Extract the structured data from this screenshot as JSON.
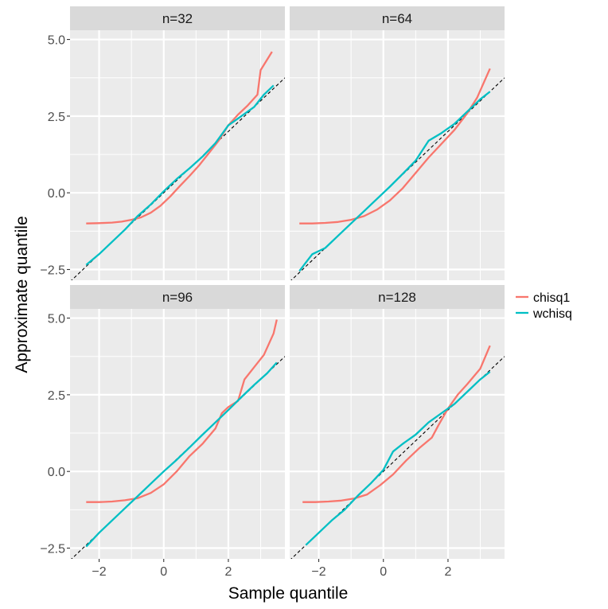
{
  "chart_data": {
    "type": "line",
    "title": "",
    "xlabel": "Sample quantile",
    "ylabel": "Approximate quantile",
    "xlim": [
      -2.9,
      3.75
    ],
    "ylim": [
      -2.85,
      5.3
    ],
    "x_ticks": [
      -2,
      0,
      2
    ],
    "x_tick_labels": [
      "−2",
      "0",
      "2"
    ],
    "y_ticks": [
      -2.5,
      0,
      2.5,
      5
    ],
    "y_tick_labels": [
      "−2.5",
      "0.0",
      "2.5",
      "5.0"
    ],
    "reference_line": {
      "intercept": 0,
      "slope": 1,
      "style": "dashed",
      "color": "#000000"
    },
    "grid": true,
    "legend_position": "right",
    "legend": [
      {
        "name": "chisq1",
        "color": "#F8766D"
      },
      {
        "name": "wchisq",
        "color": "#00BFC4"
      }
    ],
    "panels": [
      {
        "label": "n=32",
        "series": [
          {
            "name": "chisq1",
            "x": [
              -2.4,
              -2.0,
              -1.6,
              -1.3,
              -1.0,
              -0.7,
              -0.4,
              -0.1,
              0.2,
              0.5,
              0.8,
              1.1,
              1.4,
              1.7,
              2.0,
              2.3,
              2.6,
              2.9,
              3.0,
              3.35
            ],
            "y": [
              -1.0,
              -0.99,
              -0.97,
              -0.94,
              -0.88,
              -0.8,
              -0.65,
              -0.42,
              -0.12,
              0.22,
              0.55,
              0.9,
              1.3,
              1.7,
              2.2,
              2.55,
              2.85,
              3.2,
              4.0,
              4.6
            ]
          },
          {
            "name": "wchisq",
            "x": [
              -2.4,
              -2.0,
              -1.6,
              -1.2,
              -0.8,
              -0.4,
              0.0,
              0.4,
              0.8,
              1.2,
              1.6,
              2.0,
              2.4,
              2.8,
              3.1,
              3.4
            ],
            "y": [
              -2.35,
              -2.0,
              -1.6,
              -1.2,
              -0.75,
              -0.38,
              0.05,
              0.45,
              0.8,
              1.18,
              1.62,
              2.2,
              2.5,
              2.8,
              3.2,
              3.5
            ]
          }
        ]
      },
      {
        "label": "n=64",
        "series": [
          {
            "name": "chisq1",
            "x": [
              -2.6,
              -2.2,
              -1.8,
              -1.4,
              -1.0,
              -0.6,
              -0.2,
              0.2,
              0.6,
              1.0,
              1.4,
              1.8,
              2.2,
              2.6,
              2.9,
              3.3
            ],
            "y": [
              -1.0,
              -1.0,
              -0.98,
              -0.95,
              -0.88,
              -0.76,
              -0.55,
              -0.25,
              0.15,
              0.65,
              1.15,
              1.6,
              2.05,
              2.6,
              3.1,
              4.05
            ]
          },
          {
            "name": "wchisq",
            "x": [
              -2.6,
              -2.2,
              -1.8,
              -1.4,
              -1.0,
              -0.6,
              -0.2,
              0.2,
              0.6,
              1.0,
              1.4,
              1.8,
              2.2,
              2.6,
              3.0,
              3.3
            ],
            "y": [
              -2.55,
              -2.0,
              -1.8,
              -1.4,
              -1.0,
              -0.6,
              -0.2,
              0.2,
              0.62,
              1.05,
              1.7,
              1.95,
              2.25,
              2.65,
              3.05,
              3.3
            ]
          }
        ]
      },
      {
        "label": "n=96",
        "series": [
          {
            "name": "chisq1",
            "x": [
              -2.4,
              -2.0,
              -1.6,
              -1.2,
              -0.8,
              -0.4,
              0.0,
              0.4,
              0.8,
              1.2,
              1.6,
              1.8,
              2.0,
              2.3,
              2.5,
              2.8,
              3.1,
              3.4,
              3.5
            ],
            "y": [
              -1.0,
              -1.0,
              -0.98,
              -0.94,
              -0.87,
              -0.7,
              -0.42,
              0.0,
              0.5,
              0.9,
              1.4,
              1.9,
              2.1,
              2.3,
              3.0,
              3.4,
              3.8,
              4.5,
              4.95
            ]
          },
          {
            "name": "wchisq",
            "x": [
              -2.4,
              -2.0,
              -1.6,
              -1.2,
              -0.8,
              -0.4,
              0.0,
              0.4,
              0.8,
              1.2,
              1.6,
              2.0,
              2.4,
              2.8,
              3.2,
              3.5
            ],
            "y": [
              -2.45,
              -2.0,
              -1.6,
              -1.2,
              -0.8,
              -0.4,
              0.0,
              0.38,
              0.78,
              1.2,
              1.6,
              2.0,
              2.42,
              2.82,
              3.2,
              3.55
            ]
          }
        ]
      },
      {
        "label": "n=128",
        "series": [
          {
            "name": "chisq1",
            "x": [
              -2.5,
              -2.1,
              -1.7,
              -1.3,
              -0.9,
              -0.5,
              -0.1,
              0.3,
              0.7,
              1.1,
              1.5,
              1.7,
              2.0,
              2.3,
              2.6,
              3.0,
              3.3
            ],
            "y": [
              -1.0,
              -1.0,
              -0.98,
              -0.95,
              -0.88,
              -0.75,
              -0.45,
              -0.1,
              0.35,
              0.75,
              1.1,
              1.5,
              2.05,
              2.5,
              2.85,
              3.35,
              4.1
            ]
          },
          {
            "name": "wchisq",
            "x": [
              -2.4,
              -2.0,
              -1.6,
              -1.2,
              -0.8,
              -0.4,
              0.0,
              0.3,
              0.6,
              1.0,
              1.4,
              1.8,
              2.2,
              2.6,
              3.0,
              3.3
            ],
            "y": [
              -2.4,
              -2.0,
              -1.6,
              -1.25,
              -0.8,
              -0.4,
              0.05,
              0.65,
              0.9,
              1.2,
              1.6,
              1.9,
              2.2,
              2.6,
              3.0,
              3.25
            ]
          }
        ]
      }
    ]
  }
}
